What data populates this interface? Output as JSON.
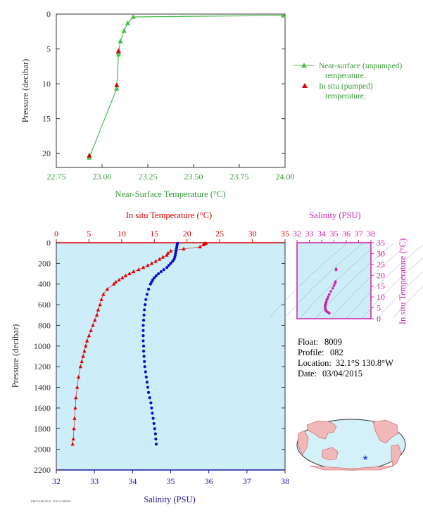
{
  "chart_data": [
    {
      "type": "line",
      "xlabel": "Near-Surface Temperature (°C)",
      "ylabel": "Pressure (decibar)",
      "xlim": [
        22.75,
        24.0
      ],
      "ylim": [
        0,
        22
      ],
      "y_reversed": true,
      "xticks": [
        "22.75",
        "23.00",
        "23.25",
        "23.50",
        "23.75",
        "24.00"
      ],
      "yticks": [
        "0",
        "5",
        "10",
        "15",
        "20"
      ],
      "legend_position": "right",
      "grid": false,
      "series": [
        {
          "name": "Near-surface (unpumped) temperature.",
          "line2": "temperature.",
          "line1": "Near-surface (unpumped)",
          "color": "#4cbf4c",
          "marker": "triangle",
          "x": [
            23.99,
            23.17,
            23.14,
            23.12,
            23.1,
            23.09,
            23.09,
            23.08,
            22.93
          ],
          "y": [
            0.2,
            0.4,
            1.3,
            2.4,
            3.9,
            5.5,
            5.8,
            10.7,
            20.6
          ]
        },
        {
          "name": "In situ (pumped) temperature.",
          "line1": "In situ (pumped)",
          "line2": "temperature.",
          "color": "#dd0000",
          "marker": "triangle",
          "x": [
            23.09,
            23.08,
            22.93
          ],
          "y": [
            5.3,
            10.2,
            20.3
          ]
        }
      ]
    },
    {
      "type": "scatter",
      "title_top": "In situ Temperature (°C)",
      "xlabel": "Salinity (PSU)",
      "ylabel": "Pressure (decibar)",
      "top_axis": {
        "lim": [
          0,
          35
        ],
        "ticks": [
          "0",
          "5",
          "10",
          "15",
          "20",
          "25",
          "30",
          "35"
        ],
        "color": "#dd0000"
      },
      "bottom_axis": {
        "lim": [
          32,
          38
        ],
        "ticks": [
          "32",
          "33",
          "34",
          "35",
          "36",
          "37",
          "38"
        ],
        "color": "#1a1aa0"
      },
      "ylim": [
        0,
        2200
      ],
      "yticks": [
        "0",
        "200",
        "400",
        "600",
        "800",
        "1000",
        "1200",
        "1400",
        "1600",
        "1800",
        "2000",
        "2200"
      ],
      "background": "#cdeef9",
      "series": [
        {
          "name": "temperature",
          "color": "#dd0000",
          "marker": "triangle",
          "p": [
            5,
            10,
            20,
            40,
            60,
            80,
            100,
            120,
            140,
            160,
            180,
            200,
            220,
            240,
            260,
            280,
            300,
            320,
            340,
            360,
            380,
            400,
            450,
            500,
            550,
            600,
            650,
            700,
            750,
            800,
            850,
            900,
            950,
            1000,
            1050,
            1100,
            1150,
            1200,
            1300,
            1400,
            1500,
            1600,
            1700,
            1800,
            1900,
            1950
          ],
          "t": [
            22.9,
            22.7,
            22.5,
            22.0,
            19.5,
            17.5,
            17.1,
            16.9,
            16.3,
            15.8,
            15.2,
            14.6,
            14.0,
            13.3,
            12.6,
            11.8,
            11.2,
            10.6,
            10.1,
            9.6,
            9.1,
            8.8,
            7.8,
            7.2,
            6.9,
            6.7,
            6.4,
            6.2,
            5.9,
            5.6,
            5.3,
            5.0,
            4.7,
            4.5,
            4.3,
            4.1,
            3.9,
            3.7,
            3.4,
            3.2,
            3.0,
            2.9,
            2.8,
            2.7,
            2.6,
            2.5
          ]
        },
        {
          "name": "salinity",
          "color": "#0a0ad0",
          "marker": "dot",
          "p": [
            5,
            20,
            40,
            60,
            80,
            100,
            120,
            140,
            160,
            180,
            200,
            220,
            240,
            260,
            280,
            300,
            320,
            340,
            360,
            380,
            400,
            450,
            500,
            550,
            600,
            650,
            700,
            750,
            800,
            850,
            900,
            950,
            1000,
            1050,
            1100,
            1150,
            1200,
            1250,
            1300,
            1350,
            1400,
            1450,
            1500,
            1550,
            1600,
            1650,
            1700,
            1750,
            1800,
            1850,
            1900,
            1950
          ],
          "s": [
            35.18,
            35.17,
            35.16,
            35.15,
            35.14,
            35.13,
            35.12,
            35.11,
            35.09,
            35.05,
            35.0,
            34.95,
            34.9,
            34.82,
            34.75,
            34.68,
            34.62,
            34.57,
            34.53,
            34.5,
            34.47,
            34.42,
            34.38,
            34.35,
            34.33,
            34.31,
            34.3,
            34.29,
            34.28,
            34.28,
            34.28,
            34.28,
            34.29,
            34.29,
            34.3,
            34.31,
            34.32,
            34.34,
            34.36,
            34.38,
            34.4,
            34.42,
            34.45,
            34.48,
            34.5,
            34.52,
            34.54,
            34.56,
            34.58,
            34.6,
            34.61,
            34.62
          ]
        }
      ]
    },
    {
      "type": "scatter",
      "xlabel": "Salinity (PSU)",
      "ylabel": "In situ Temperature (°C)",
      "xlim": [
        32,
        38
      ],
      "ylim": [
        0,
        35
      ],
      "xticks": [
        "32",
        "33",
        "34",
        "35",
        "36",
        "37",
        "38"
      ],
      "yticks": [
        "0",
        "5",
        "10",
        "15",
        "20",
        "25",
        "30",
        "35"
      ],
      "color": "#cc22aa",
      "points_s": [
        35.18,
        35.17,
        35.13,
        35.09,
        35.0,
        34.9,
        34.75,
        34.62,
        34.53,
        34.47,
        34.42,
        34.38,
        34.35,
        34.33,
        34.31,
        34.3,
        34.29,
        34.28,
        34.28,
        34.29,
        34.3,
        34.32,
        34.36,
        34.4,
        34.45,
        34.5,
        34.54,
        34.58,
        34.62
      ],
      "points_t": [
        22.9,
        22.5,
        17.1,
        16.3,
        15.2,
        14.0,
        12.6,
        11.2,
        10.1,
        9.1,
        8.8,
        7.8,
        7.2,
        6.9,
        6.7,
        6.4,
        6.2,
        5.9,
        5.3,
        5.0,
        4.5,
        4.1,
        3.7,
        3.4,
        3.2,
        3.0,
        2.9,
        2.7,
        2.5
      ]
    }
  ],
  "info": {
    "float_label": "Float:",
    "float_value": "8009",
    "profile_label": "Profile:",
    "profile_value": "082",
    "location_label": "Location:",
    "location_value": "32.1°S  130.8°W",
    "date_label": "Date:",
    "date_value": "03/04/2015"
  },
  "footer_text": "PROVISIONAL DATA 000001",
  "map": {
    "marker_color": "#1a3cff",
    "land_color": "#f0b8b8",
    "ocean_color": "#d4f0f8"
  }
}
